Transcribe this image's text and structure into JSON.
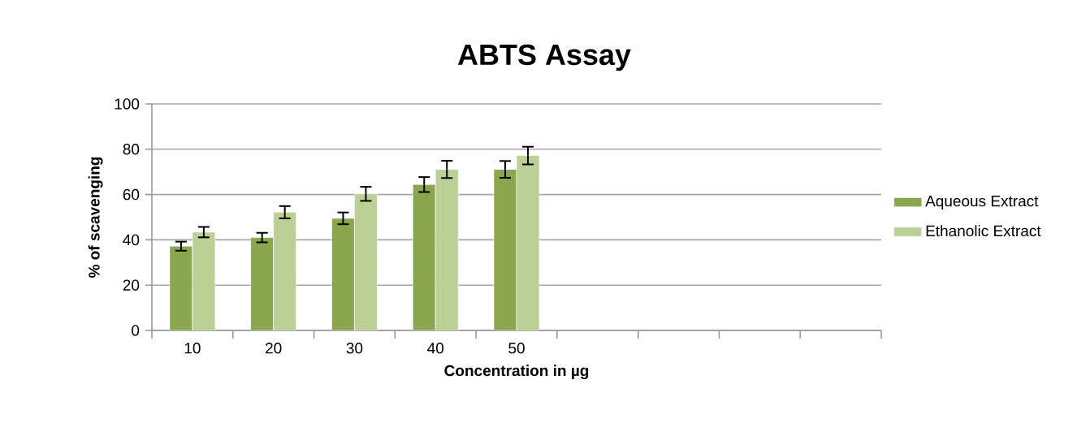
{
  "chart_data": {
    "type": "bar",
    "title": "ABTS Assay",
    "xlabel": "Concentration in µg",
    "ylabel": "% of scavenging",
    "categories": [
      "10",
      "20",
      "30",
      "40",
      "50",
      null,
      null,
      null,
      null
    ],
    "series": [
      {
        "name": "Aqueous Extract",
        "color": "#8aa64f",
        "values": [
          37.2,
          41.0,
          49.5,
          64.4,
          71.1,
          null,
          null,
          null,
          null
        ],
        "errors": [
          2.0,
          2.1,
          2.6,
          3.3,
          3.7,
          null,
          null,
          null,
          null
        ]
      },
      {
        "name": "Ethanolic Extract",
        "color": "#bcd096",
        "values": [
          43.4,
          52.2,
          60.3,
          71.1,
          77.2,
          null,
          null,
          null,
          null
        ],
        "errors": [
          2.3,
          2.7,
          3.1,
          3.8,
          3.9,
          null,
          null,
          null,
          null
        ]
      }
    ],
    "ylim": [
      0,
      100
    ],
    "yticks": [
      0,
      20,
      40,
      60,
      80,
      100
    ],
    "grid": "y",
    "legend": "right"
  }
}
